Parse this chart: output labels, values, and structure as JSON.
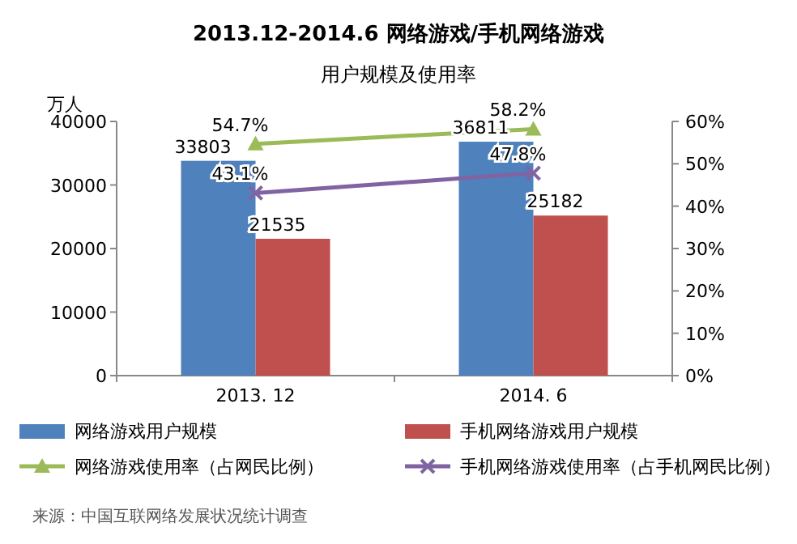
{
  "chart_data": {
    "type": "bar",
    "title": "2013.12-2014.6 网络游戏/手机网络游戏",
    "subtitle": "用户规模及使用率",
    "ylabel": "万人",
    "categories": [
      "2013. 12",
      "2014. 6"
    ],
    "series": [
      {
        "name": "网络游戏用户规模",
        "color": "#4f81bd",
        "values": [
          33803,
          36811
        ],
        "value_labels": [
          "33803",
          "36811"
        ]
      },
      {
        "name": "手机网络游戏用户规模",
        "color": "#c0504d",
        "values": [
          21535,
          25182
        ],
        "value_labels": [
          "21535",
          "25182"
        ]
      },
      {
        "name": "网络游戏使用率（占网民比例）",
        "type": "line",
        "axis": "y2",
        "marker": "triangle",
        "color": "#9bbb59",
        "values": [
          54.7,
          58.2
        ],
        "value_labels": [
          "54.7%",
          "58.2%"
        ]
      },
      {
        "name": "手机网络游戏使用率（占手机网民比例）",
        "type": "line",
        "axis": "y2",
        "marker": "cross",
        "color": "#8064a2",
        "values": [
          43.1,
          47.8
        ],
        "value_labels": [
          "43.1%",
          "47.8%"
        ]
      }
    ],
    "ylim": [
      0,
      40000
    ],
    "yticks": [
      0,
      10000,
      20000,
      30000,
      40000
    ],
    "y2lim": [
      0,
      60
    ],
    "y2ticks": [
      {
        "value": 0,
        "label": "0%"
      },
      {
        "value": 10,
        "label": "10%"
      },
      {
        "value": 20,
        "label": "20%"
      },
      {
        "value": 30,
        "label": "30%"
      },
      {
        "value": 40,
        "label": "40%"
      },
      {
        "value": 50,
        "label": "50%"
      },
      {
        "value": 60,
        "label": "60%"
      }
    ],
    "legend": "bottom",
    "annotations": [
      "来源：中国互联网络发展状况统计调查"
    ]
  }
}
